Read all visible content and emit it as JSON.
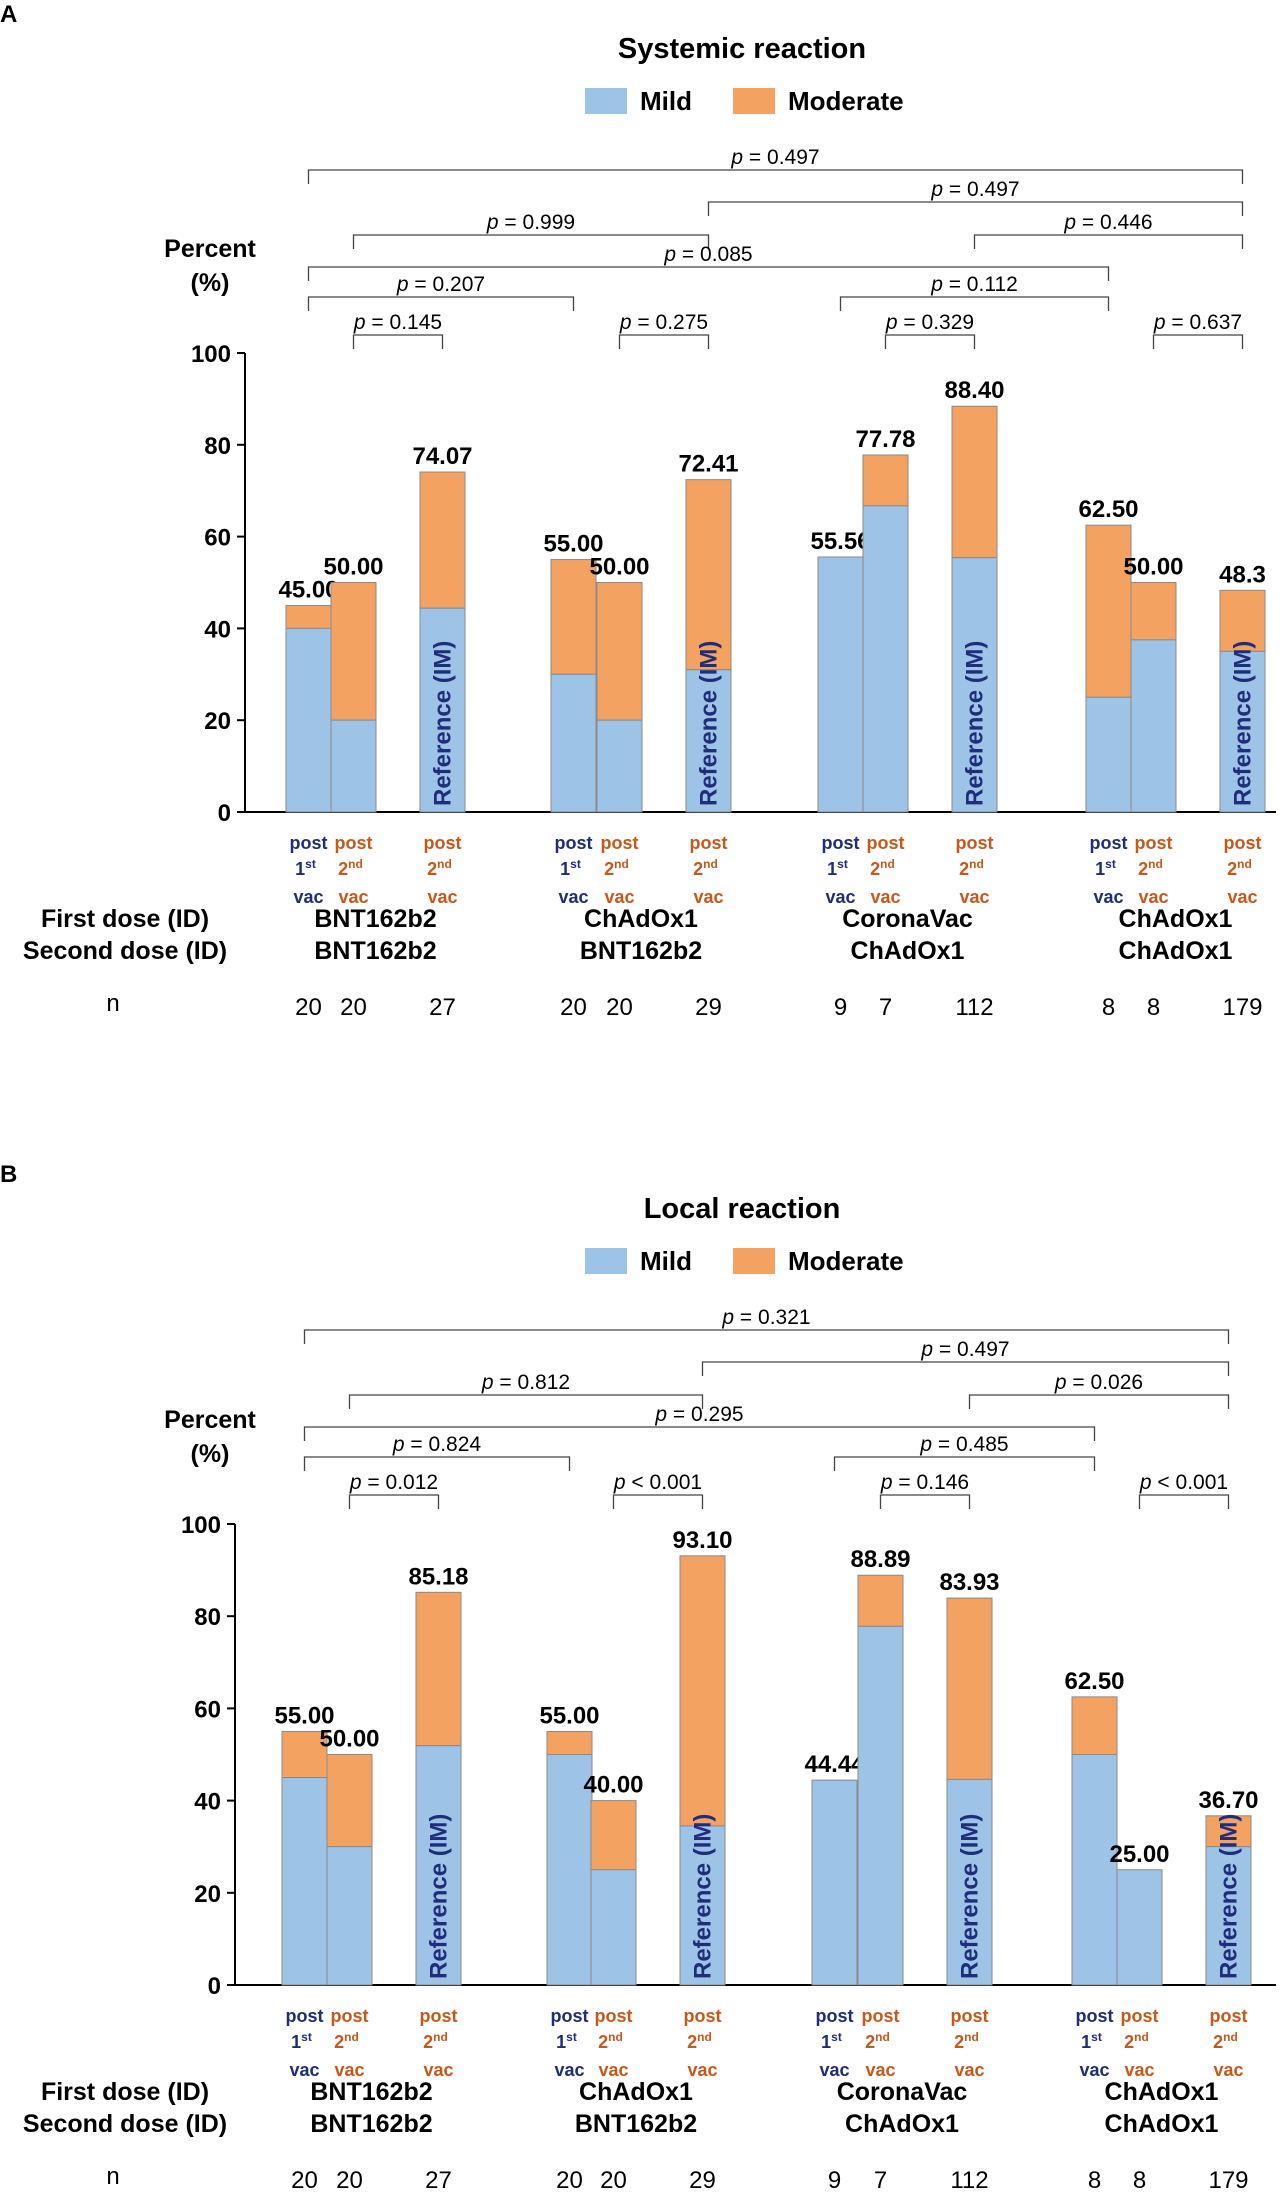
{
  "chart_data": [
    {
      "panel": "A",
      "type": "stacked-bar",
      "title": "Systemic reaction",
      "legend": [
        {
          "name": "Mild",
          "color": "#9dc3e6"
        },
        {
          "name": "Moderate",
          "color": "#f4a261"
        }
      ],
      "ylabel": [
        "Percent",
        "(%)"
      ],
      "ylim": [
        0,
        100
      ],
      "yticks": [
        "0",
        "20",
        "40",
        "60",
        "80",
        "100"
      ],
      "row_labels": {
        "first_dose": "First dose (ID)",
        "second_dose": "Second dose (ID)",
        "n": "n"
      },
      "reference_label": "Reference (IM)",
      "groups": [
        {
          "first_dose": "BNT162b2",
          "second_dose": "BNT162b2",
          "bars": [
            {
              "cat": [
                "post",
                "1",
                "st",
                "vac"
              ],
              "kind": "first",
              "mild": 40,
              "total": 45,
              "label": "45.00",
              "n": "20"
            },
            {
              "cat": [
                "post",
                "2",
                "nd",
                "vac"
              ],
              "kind": "second",
              "mild": 20,
              "total": 50,
              "label": "50.00",
              "n": "20"
            },
            {
              "cat": [
                "post",
                "2",
                "nd",
                "vac"
              ],
              "kind": "second",
              "mild": 44.4,
              "total": 74.07,
              "label": "74.07",
              "n": "27",
              "reference": true
            }
          ]
        },
        {
          "first_dose": "ChAdOx1",
          "second_dose": "BNT162b2",
          "bars": [
            {
              "cat": [
                "post",
                "1",
                "st",
                "vac"
              ],
              "kind": "first",
              "mild": 30,
              "total": 55,
              "label": "55.00",
              "n": "20"
            },
            {
              "cat": [
                "post",
                "2",
                "nd",
                "vac"
              ],
              "kind": "second",
              "mild": 20,
              "total": 50,
              "label": "50.00",
              "n": "20"
            },
            {
              "cat": [
                "post",
                "2",
                "nd",
                "vac"
              ],
              "kind": "second",
              "mild": 31,
              "total": 72.41,
              "label": "72.41",
              "n": "29",
              "reference": true
            }
          ]
        },
        {
          "first_dose": "CoronaVac",
          "second_dose": "ChAdOx1",
          "bars": [
            {
              "cat": [
                "post",
                "1",
                "st",
                "vac"
              ],
              "kind": "first",
              "mild": 55.56,
              "total": 55.56,
              "label": "55.56",
              "n": "9"
            },
            {
              "cat": [
                "post",
                "2",
                "nd",
                "vac"
              ],
              "kind": "second",
              "mild": 66.7,
              "total": 77.78,
              "label": "77.78",
              "n": "7"
            },
            {
              "cat": [
                "post",
                "2",
                "nd",
                "vac"
              ],
              "kind": "second",
              "mild": 55.4,
              "total": 88.4,
              "label": "88.40",
              "n": "112",
              "reference": true
            }
          ]
        },
        {
          "first_dose": "ChAdOx1",
          "second_dose": "ChAdOx1",
          "bars": [
            {
              "cat": [
                "post",
                "1",
                "st",
                "vac"
              ],
              "kind": "first",
              "mild": 25,
              "total": 62.5,
              "label": "62.50",
              "n": "8"
            },
            {
              "cat": [
                "post",
                "2",
                "nd",
                "vac"
              ],
              "kind": "second",
              "mild": 37.5,
              "total": 50,
              "label": "50.00",
              "n": "8"
            },
            {
              "cat": [
                "post",
                "2",
                "nd",
                "vac"
              ],
              "kind": "second",
              "mild": 35,
              "total": 48.3,
              "label": "48.3",
              "n": "179",
              "reference": true
            }
          ]
        }
      ],
      "comparisons": [
        {
          "from": [
            0,
            0
          ],
          "to": [
            3,
            2
          ],
          "p": "0.497"
        },
        {
          "from": [
            1,
            2
          ],
          "to": [
            3,
            2
          ],
          "p": "0.497"
        },
        {
          "from": [
            0,
            1
          ],
          "to": [
            1,
            2
          ],
          "p": "0.999"
        },
        {
          "from": [
            2,
            2
          ],
          "to": [
            3,
            2
          ],
          "p": "0.446"
        },
        {
          "from": [
            0,
            0
          ],
          "to": [
            3,
            0
          ],
          "p": "0.085"
        },
        {
          "from": [
            0,
            0
          ],
          "to": [
            1,
            0
          ],
          "p": "0.207"
        },
        {
          "from": [
            2,
            0
          ],
          "to": [
            3,
            0
          ],
          "p": "0.112"
        },
        {
          "from": [
            0,
            1
          ],
          "to": [
            0,
            2
          ],
          "p": "0.145"
        },
        {
          "from": [
            1,
            1
          ],
          "to": [
            1,
            2
          ],
          "p": "0.275"
        },
        {
          "from": [
            2,
            1
          ],
          "to": [
            2,
            2
          ],
          "p": "0.329"
        },
        {
          "from": [
            3,
            1
          ],
          "to": [
            3,
            2
          ],
          "p": "0.637"
        }
      ]
    },
    {
      "panel": "B",
      "type": "stacked-bar",
      "title": "Local reaction",
      "legend": [
        {
          "name": "Mild",
          "color": "#9dc3e6"
        },
        {
          "name": "Moderate",
          "color": "#f4a261"
        }
      ],
      "ylabel": [
        "Percent",
        "(%)"
      ],
      "ylim": [
        0,
        100
      ],
      "yticks": [
        "0",
        "20",
        "40",
        "60",
        "80",
        "100"
      ],
      "row_labels": {
        "first_dose": "First dose (ID)",
        "second_dose": "Second dose (ID)",
        "n": "n"
      },
      "reference_label": "Reference (IM)",
      "groups": [
        {
          "first_dose": "BNT162b2",
          "second_dose": "BNT162b2",
          "bars": [
            {
              "cat": [
                "post",
                "1",
                "st",
                "vac"
              ],
              "kind": "first",
              "mild": 45,
              "total": 55,
              "label": "55.00",
              "n": "20"
            },
            {
              "cat": [
                "post",
                "2",
                "nd",
                "vac"
              ],
              "kind": "second",
              "mild": 30,
              "total": 50,
              "label": "50.00",
              "n": "20"
            },
            {
              "cat": [
                "post",
                "2",
                "nd",
                "vac"
              ],
              "kind": "second",
              "mild": 51.9,
              "total": 85.18,
              "label": "85.18",
              "n": "27",
              "reference": true
            }
          ]
        },
        {
          "first_dose": "ChAdOx1",
          "second_dose": "BNT162b2",
          "bars": [
            {
              "cat": [
                "post",
                "1",
                "st",
                "vac"
              ],
              "kind": "first",
              "mild": 50,
              "total": 55,
              "label": "55.00",
              "n": "20"
            },
            {
              "cat": [
                "post",
                "2",
                "nd",
                "vac"
              ],
              "kind": "second",
              "mild": 25,
              "total": 40,
              "label": "40.00",
              "n": "20"
            },
            {
              "cat": [
                "post",
                "2",
                "nd",
                "vac"
              ],
              "kind": "second",
              "mild": 34.5,
              "total": 93.1,
              "label": "93.10",
              "n": "29",
              "reference": true
            }
          ]
        },
        {
          "first_dose": "CoronaVac",
          "second_dose": "ChAdOx1",
          "bars": [
            {
              "cat": [
                "post",
                "1",
                "st",
                "vac"
              ],
              "kind": "first",
              "mild": 44.44,
              "total": 44.44,
              "label": "44.44",
              "n": "9"
            },
            {
              "cat": [
                "post",
                "2",
                "nd",
                "vac"
              ],
              "kind": "second",
              "mild": 77.8,
              "total": 88.89,
              "label": "88.89",
              "n": "7"
            },
            {
              "cat": [
                "post",
                "2",
                "nd",
                "vac"
              ],
              "kind": "second",
              "mild": 44.6,
              "total": 83.93,
              "label": "83.93",
              "n": "112",
              "reference": true
            }
          ]
        },
        {
          "first_dose": "ChAdOx1",
          "second_dose": "ChAdOx1",
          "bars": [
            {
              "cat": [
                "post",
                "1",
                "st",
                "vac"
              ],
              "kind": "first",
              "mild": 50,
              "total": 62.5,
              "label": "62.50",
              "n": "8"
            },
            {
              "cat": [
                "post",
                "2",
                "nd",
                "vac"
              ],
              "kind": "second",
              "mild": 25,
              "total": 25,
              "label": "25.00",
              "n": "8"
            },
            {
              "cat": [
                "post",
                "2",
                "nd",
                "vac"
              ],
              "kind": "second",
              "mild": 30,
              "total": 36.7,
              "label": "36.70",
              "n": "179",
              "reference": true
            }
          ]
        }
      ],
      "comparisons": [
        {
          "from": [
            0,
            0
          ],
          "to": [
            3,
            2
          ],
          "p": "0.321"
        },
        {
          "from": [
            1,
            2
          ],
          "to": [
            3,
            2
          ],
          "p": "0.497"
        },
        {
          "from": [
            0,
            1
          ],
          "to": [
            1,
            2
          ],
          "p": "0.812"
        },
        {
          "from": [
            2,
            2
          ],
          "to": [
            3,
            2
          ],
          "p": "0.026"
        },
        {
          "from": [
            0,
            0
          ],
          "to": [
            3,
            0
          ],
          "p": "0.295"
        },
        {
          "from": [
            0,
            0
          ],
          "to": [
            1,
            0
          ],
          "p": "0.824"
        },
        {
          "from": [
            2,
            0
          ],
          "to": [
            3,
            0
          ],
          "p": "0.485"
        },
        {
          "from": [
            0,
            1
          ],
          "to": [
            0,
            2
          ],
          "p": "= 0.012"
        },
        {
          "from": [
            1,
            1
          ],
          "to": [
            1,
            2
          ],
          "p": "< 0.001"
        },
        {
          "from": [
            2,
            1
          ],
          "to": [
            2,
            2
          ],
          "p": "= 0.146"
        },
        {
          "from": [
            3,
            1
          ],
          "to": [
            3,
            2
          ],
          "p": "< 0.001"
        }
      ]
    }
  ]
}
